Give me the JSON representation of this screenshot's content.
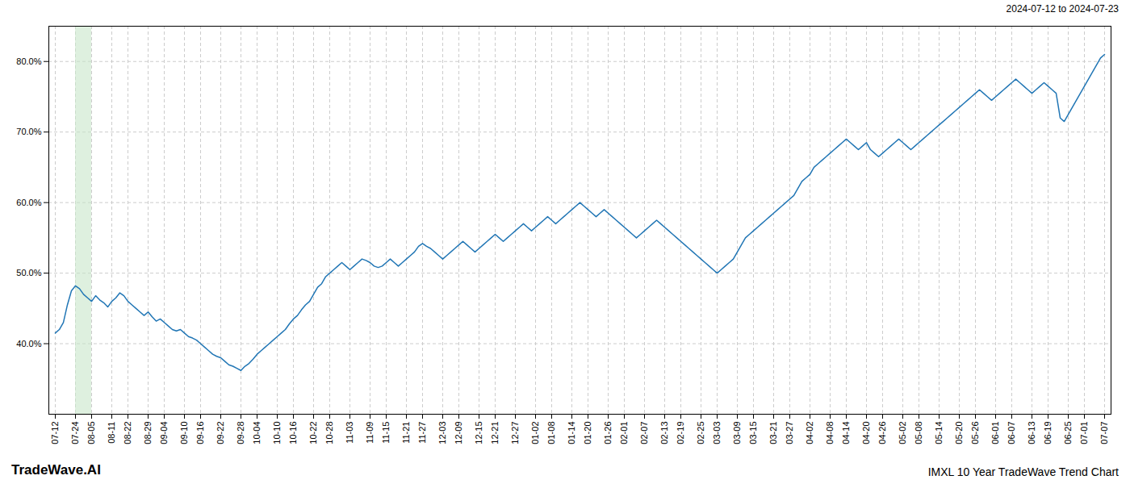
{
  "chart_data": {
    "type": "line",
    "subtitle": "2024-07-12 to 2024-07-23",
    "annotations": [
      "TradeWave.AI",
      "IMXL 10 Year TradeWave Trend Chart"
    ],
    "color": "#2176b5",
    "grid": true,
    "ylim": [
      30,
      85
    ],
    "yticks": [
      {
        "value": 40.0,
        "label": "40.0%"
      },
      {
        "value": 50.0,
        "label": "50.0%"
      },
      {
        "value": 60.0,
        "label": "60.0%"
      },
      {
        "value": 70.0,
        "label": "70.0%"
      },
      {
        "value": 80.0,
        "label": "80.0%"
      }
    ],
    "highlight": {
      "start": "07-24",
      "end": "08-05",
      "color": "#c8e6c9"
    },
    "categories": [
      "07-12",
      null,
      null,
      null,
      null,
      "07-24",
      null,
      null,
      null,
      "08-05",
      null,
      null,
      null,
      null,
      "08-11",
      null,
      null,
      null,
      "08-22",
      null,
      null,
      null,
      null,
      "08-29",
      null,
      null,
      null,
      "09-04",
      null,
      null,
      null,
      null,
      "09-10",
      null,
      null,
      null,
      "09-16",
      null,
      null,
      null,
      null,
      "09-22",
      null,
      null,
      null,
      null,
      "09-28",
      null,
      null,
      null,
      "10-04",
      null,
      null,
      null,
      null,
      "10-10",
      null,
      null,
      null,
      "10-16",
      null,
      null,
      null,
      null,
      "10-22",
      null,
      null,
      null,
      "10-28",
      null,
      null,
      null,
      null,
      "11-03",
      null,
      null,
      null,
      null,
      "11-09",
      null,
      null,
      null,
      "11-15",
      null,
      null,
      null,
      null,
      "11-21",
      null,
      null,
      null,
      "11-27",
      null,
      null,
      null,
      null,
      "12-03",
      null,
      null,
      null,
      "12-09",
      null,
      null,
      null,
      null,
      "12-15",
      null,
      null,
      null,
      "12-21",
      null,
      null,
      null,
      null,
      "12-27",
      null,
      null,
      null,
      null,
      "01-02",
      null,
      null,
      null,
      "01-08",
      null,
      null,
      null,
      null,
      "01-14",
      null,
      null,
      null,
      "01-20",
      null,
      null,
      null,
      null,
      "01-26",
      null,
      null,
      null,
      "02-01",
      null,
      null,
      null,
      null,
      "02-07",
      null,
      null,
      null,
      null,
      "02-13",
      null,
      null,
      null,
      "02-19",
      null,
      null,
      null,
      null,
      "02-25",
      null,
      null,
      null,
      "03-03",
      null,
      null,
      null,
      null,
      "03-09",
      null,
      null,
      null,
      "03-15",
      null,
      null,
      null,
      null,
      "03-21",
      null,
      null,
      null,
      "03-27",
      null,
      null,
      null,
      null,
      "04-02",
      null,
      null,
      null,
      null,
      "04-08",
      null,
      null,
      null,
      "04-14",
      null,
      null,
      null,
      null,
      "04-20",
      null,
      null,
      null,
      "04-26",
      null,
      null,
      null,
      null,
      "05-02",
      null,
      null,
      null,
      "05-08",
      null,
      null,
      null,
      null,
      "05-14",
      null,
      null,
      null,
      null,
      "05-20",
      null,
      null,
      null,
      "05-26",
      null,
      null,
      null,
      null,
      "06-01",
      null,
      null,
      null,
      "06-07",
      null,
      null,
      null,
      null,
      "06-13",
      null,
      null,
      null,
      "06-19",
      null,
      null,
      null,
      null,
      "06-25",
      null,
      null,
      null,
      "07-01",
      null,
      null,
      null,
      null,
      "07-07"
    ],
    "values": [
      41.5,
      42.0,
      43.0,
      45.5,
      47.5,
      48.2,
      47.8,
      47.0,
      46.5,
      46.0,
      46.8,
      46.2,
      45.8,
      45.2,
      46.0,
      46.5,
      47.2,
      46.8,
      46.0,
      45.5,
      45.0,
      44.5,
      44.0,
      44.5,
      43.8,
      43.2,
      43.5,
      43.0,
      42.5,
      42.0,
      41.8,
      42.0,
      41.5,
      41.0,
      40.8,
      40.5,
      40.0,
      39.5,
      39.0,
      38.5,
      38.2,
      38.0,
      37.5,
      37.0,
      36.8,
      36.5,
      36.2,
      36.8,
      37.2,
      37.8,
      38.5,
      39.0,
      39.5,
      40.0,
      40.5,
      41.0,
      41.5,
      42.0,
      42.8,
      43.5,
      44.0,
      44.8,
      45.5,
      46.0,
      47.0,
      48.0,
      48.5,
      49.5,
      50.0,
      50.5,
      51.0,
      51.5,
      51.0,
      50.5,
      51.0,
      51.5,
      52.0,
      51.8,
      51.5,
      51.0,
      50.8,
      51.0,
      51.5,
      52.0,
      51.5,
      51.0,
      51.5,
      52.0,
      52.5,
      53.0,
      53.8,
      54.2,
      53.8,
      53.5,
      53.0,
      52.5,
      52.0,
      52.5,
      53.0,
      53.5,
      54.0,
      54.5,
      54.0,
      53.5,
      53.0,
      53.5,
      54.0,
      54.5,
      55.0,
      55.5,
      55.0,
      54.5,
      55.0,
      55.5,
      56.0,
      56.5,
      57.0,
      56.5,
      56.0,
      56.5,
      57.0,
      57.5,
      58.0,
      57.5,
      57.0,
      57.5,
      58.0,
      58.5,
      59.0,
      59.5,
      60.0,
      59.5,
      59.0,
      58.5,
      58.0,
      58.5,
      59.0,
      58.5,
      58.0,
      57.5,
      57.0,
      56.5,
      56.0,
      55.5,
      55.0,
      55.5,
      56.0,
      56.5,
      57.0,
      57.5,
      57.0,
      56.5,
      56.0,
      55.5,
      55.0,
      54.5,
      54.0,
      53.5,
      53.0,
      52.5,
      52.0,
      51.5,
      51.0,
      50.5,
      50.0,
      50.5,
      51.0,
      51.5,
      52.0,
      53.0,
      54.0,
      55.0,
      55.5,
      56.0,
      56.5,
      57.0,
      57.5,
      58.0,
      58.5,
      59.0,
      59.5,
      60.0,
      60.5,
      61.0,
      62.0,
      63.0,
      63.5,
      64.0,
      65.0,
      65.5,
      66.0,
      66.5,
      67.0,
      67.5,
      68.0,
      68.5,
      69.0,
      68.5,
      68.0,
      67.5,
      68.0,
      68.5,
      67.5,
      67.0,
      66.5,
      67.0,
      67.5,
      68.0,
      68.5,
      69.0,
      68.5,
      68.0,
      67.5,
      68.0,
      68.5,
      69.0,
      69.5,
      70.0,
      70.5,
      71.0,
      71.5,
      72.0,
      72.5,
      73.0,
      73.5,
      74.0,
      74.5,
      75.0,
      75.5,
      76.0,
      75.5,
      75.0,
      74.5,
      75.0,
      75.5,
      76.0,
      76.5,
      77.0,
      77.5,
      77.0,
      76.5,
      76.0,
      75.5,
      76.0,
      76.5,
      77.0,
      76.5,
      76.0,
      75.5,
      72.0,
      71.5,
      72.5,
      73.5,
      74.5,
      75.5,
      76.5,
      77.5,
      78.5,
      79.5,
      80.5,
      81.0
    ]
  }
}
